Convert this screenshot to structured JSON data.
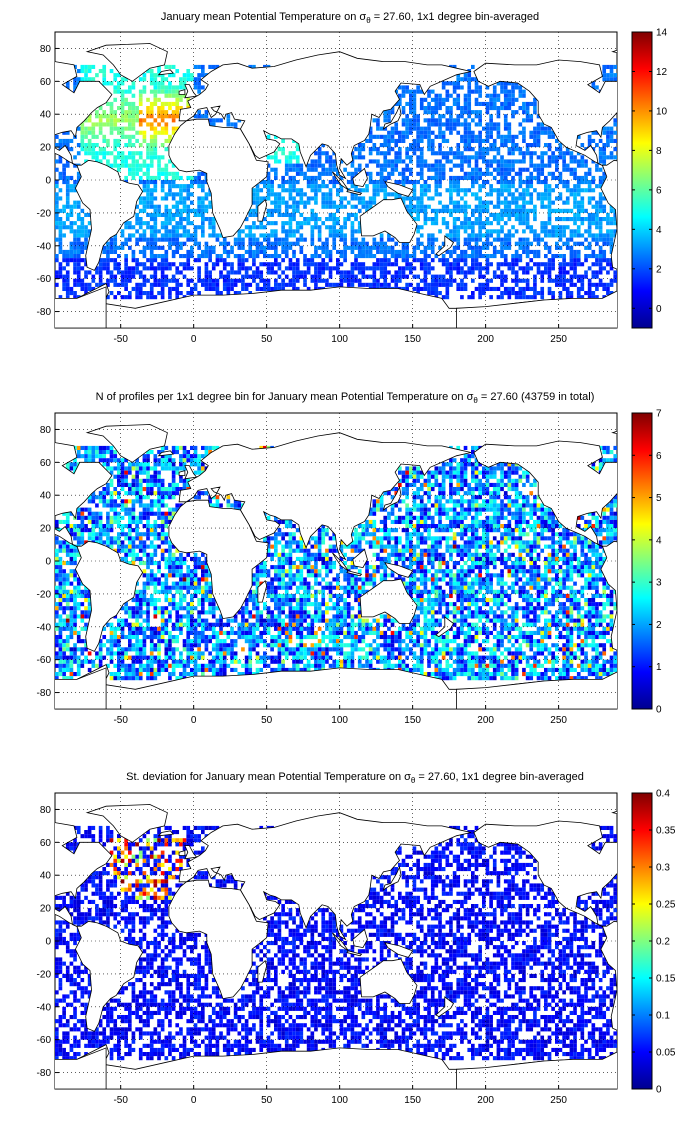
{
  "figure": {
    "panels": [
      {
        "id": "temperature",
        "title_prefix": "January mean Potential Temperature on ",
        "title_sigma": "σ",
        "title_sub": "θ",
        "title_suffix": " = 27.60, 1x1 degree bin-averaged",
        "colorbar": {
          "min": -1,
          "max": 14,
          "ticks": [
            "14",
            "12",
            "10",
            "8",
            "6",
            "4",
            "2",
            "0"
          ],
          "tick_values": [
            14,
            12,
            10,
            8,
            6,
            4,
            2,
            0
          ]
        }
      },
      {
        "id": "profiles",
        "title_prefix": "N of profiles per 1x1 degree bin for January mean Potential Temperature on ",
        "title_sigma": "σ",
        "title_sub": "θ",
        "title_suffix": " = 27.60 (43759 in total)",
        "colorbar": {
          "min": 0,
          "max": 7,
          "ticks": [
            "7",
            "6",
            "5",
            "4",
            "3",
            "2",
            "1",
            "0"
          ],
          "tick_values": [
            7,
            6,
            5,
            4,
            3,
            2,
            1,
            0
          ]
        }
      },
      {
        "id": "stdev",
        "title_prefix": "St. deviation for January mean Potential Temperature on ",
        "title_sigma": "σ",
        "title_sub": "θ",
        "title_suffix": " = 27.60, 1x1 degree bin-averaged",
        "colorbar": {
          "min": 0,
          "max": 0.4,
          "ticks": [
            "0.4",
            "0.35",
            "0.3",
            "0.25",
            "0.2",
            "0.15",
            "0.1",
            "0.05",
            "0"
          ],
          "tick_values": [
            0.4,
            0.35,
            0.3,
            0.25,
            0.2,
            0.15,
            0.1,
            0.05,
            0
          ]
        }
      }
    ],
    "map_axes": {
      "xlim": [
        -95,
        290
      ],
      "ylim": [
        -90,
        90
      ],
      "x_ticks": [
        "-50",
        "0",
        "50",
        "100",
        "150",
        "200",
        "250"
      ],
      "x_tick_values": [
        -50,
        0,
        50,
        100,
        150,
        200,
        250
      ],
      "y_ticks": [
        "80",
        "60",
        "40",
        "20",
        "0",
        "-20",
        "-40",
        "-60",
        "-80"
      ],
      "y_tick_values": [
        80,
        60,
        40,
        20,
        0,
        -20,
        -40,
        -60,
        -80
      ],
      "grid": "on (dotted)"
    },
    "colormap": "jet"
  }
}
